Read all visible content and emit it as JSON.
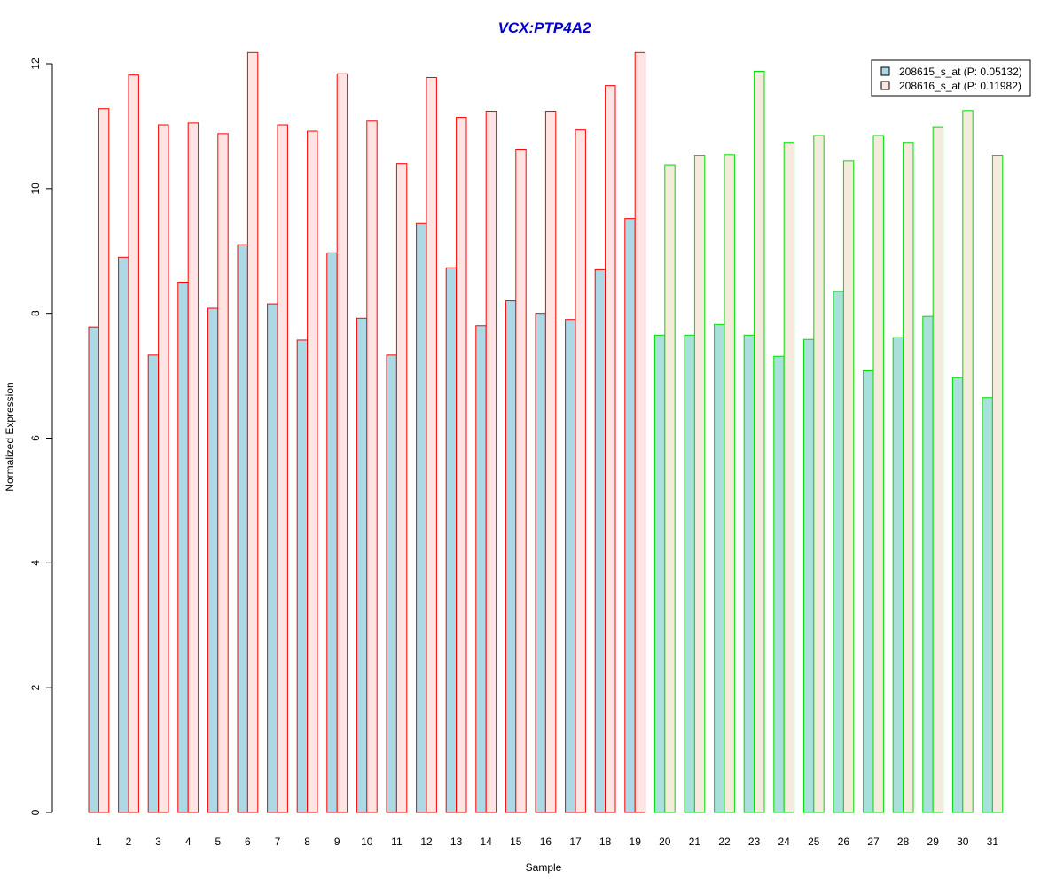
{
  "chart_data": {
    "type": "bar",
    "title": "VCX:PTP4A2",
    "xlabel": "Sample",
    "ylabel": "Normalized Expression",
    "ylim": [
      0,
      12
    ],
    "yticks": [
      "0",
      "2",
      "4",
      "6",
      "8",
      "10",
      "12"
    ],
    "categories": [
      "1",
      "2",
      "3",
      "4",
      "5",
      "6",
      "7",
      "8",
      "9",
      "10",
      "11",
      "12",
      "13",
      "14",
      "15",
      "16",
      "17",
      "18",
      "19",
      "20",
      "21",
      "22",
      "23",
      "24",
      "25",
      "26",
      "27",
      "28",
      "29",
      "30",
      "31"
    ],
    "series": [
      {
        "name": "208615_s_at (P: 0.05132)",
        "fill": "#add8e6",
        "values": [
          7.78,
          8.9,
          7.33,
          8.5,
          8.08,
          9.1,
          8.15,
          7.57,
          8.97,
          7.92,
          7.33,
          9.44,
          8.73,
          7.8,
          8.2,
          8.0,
          7.9,
          8.7,
          9.52,
          7.65,
          7.65,
          7.82,
          7.65,
          7.31,
          7.58,
          8.35,
          7.08,
          7.61,
          7.95,
          6.97,
          6.65
        ]
      },
      {
        "name": "208616_s_at (P: 0.11982)",
        "fill": "#ffe4e1",
        "values": [
          11.28,
          11.82,
          11.02,
          11.05,
          10.88,
          12.18,
          11.02,
          10.92,
          11.84,
          11.08,
          10.4,
          11.78,
          11.14,
          11.24,
          10.63,
          11.24,
          10.94,
          11.65,
          12.18,
          10.38,
          10.53,
          10.54,
          11.88,
          10.74,
          10.85,
          10.44,
          10.85,
          10.74,
          10.99,
          11.25,
          10.53
        ]
      }
    ],
    "group_colors": [
      "#ff0000",
      "#00dd00"
    ],
    "group_of_sample": [
      0,
      0,
      0,
      0,
      0,
      0,
      0,
      0,
      0,
      0,
      0,
      0,
      0,
      0,
      0,
      0,
      0,
      0,
      0,
      1,
      1,
      1,
      1,
      1,
      1,
      1,
      1,
      1,
      1,
      1,
      1
    ],
    "group_fill_overrides": [
      "#add8e6",
      "#a9e0db",
      "#ffe4e1",
      "#f5ebdc"
    ],
    "legend_position": "top-right",
    "grid": false
  }
}
